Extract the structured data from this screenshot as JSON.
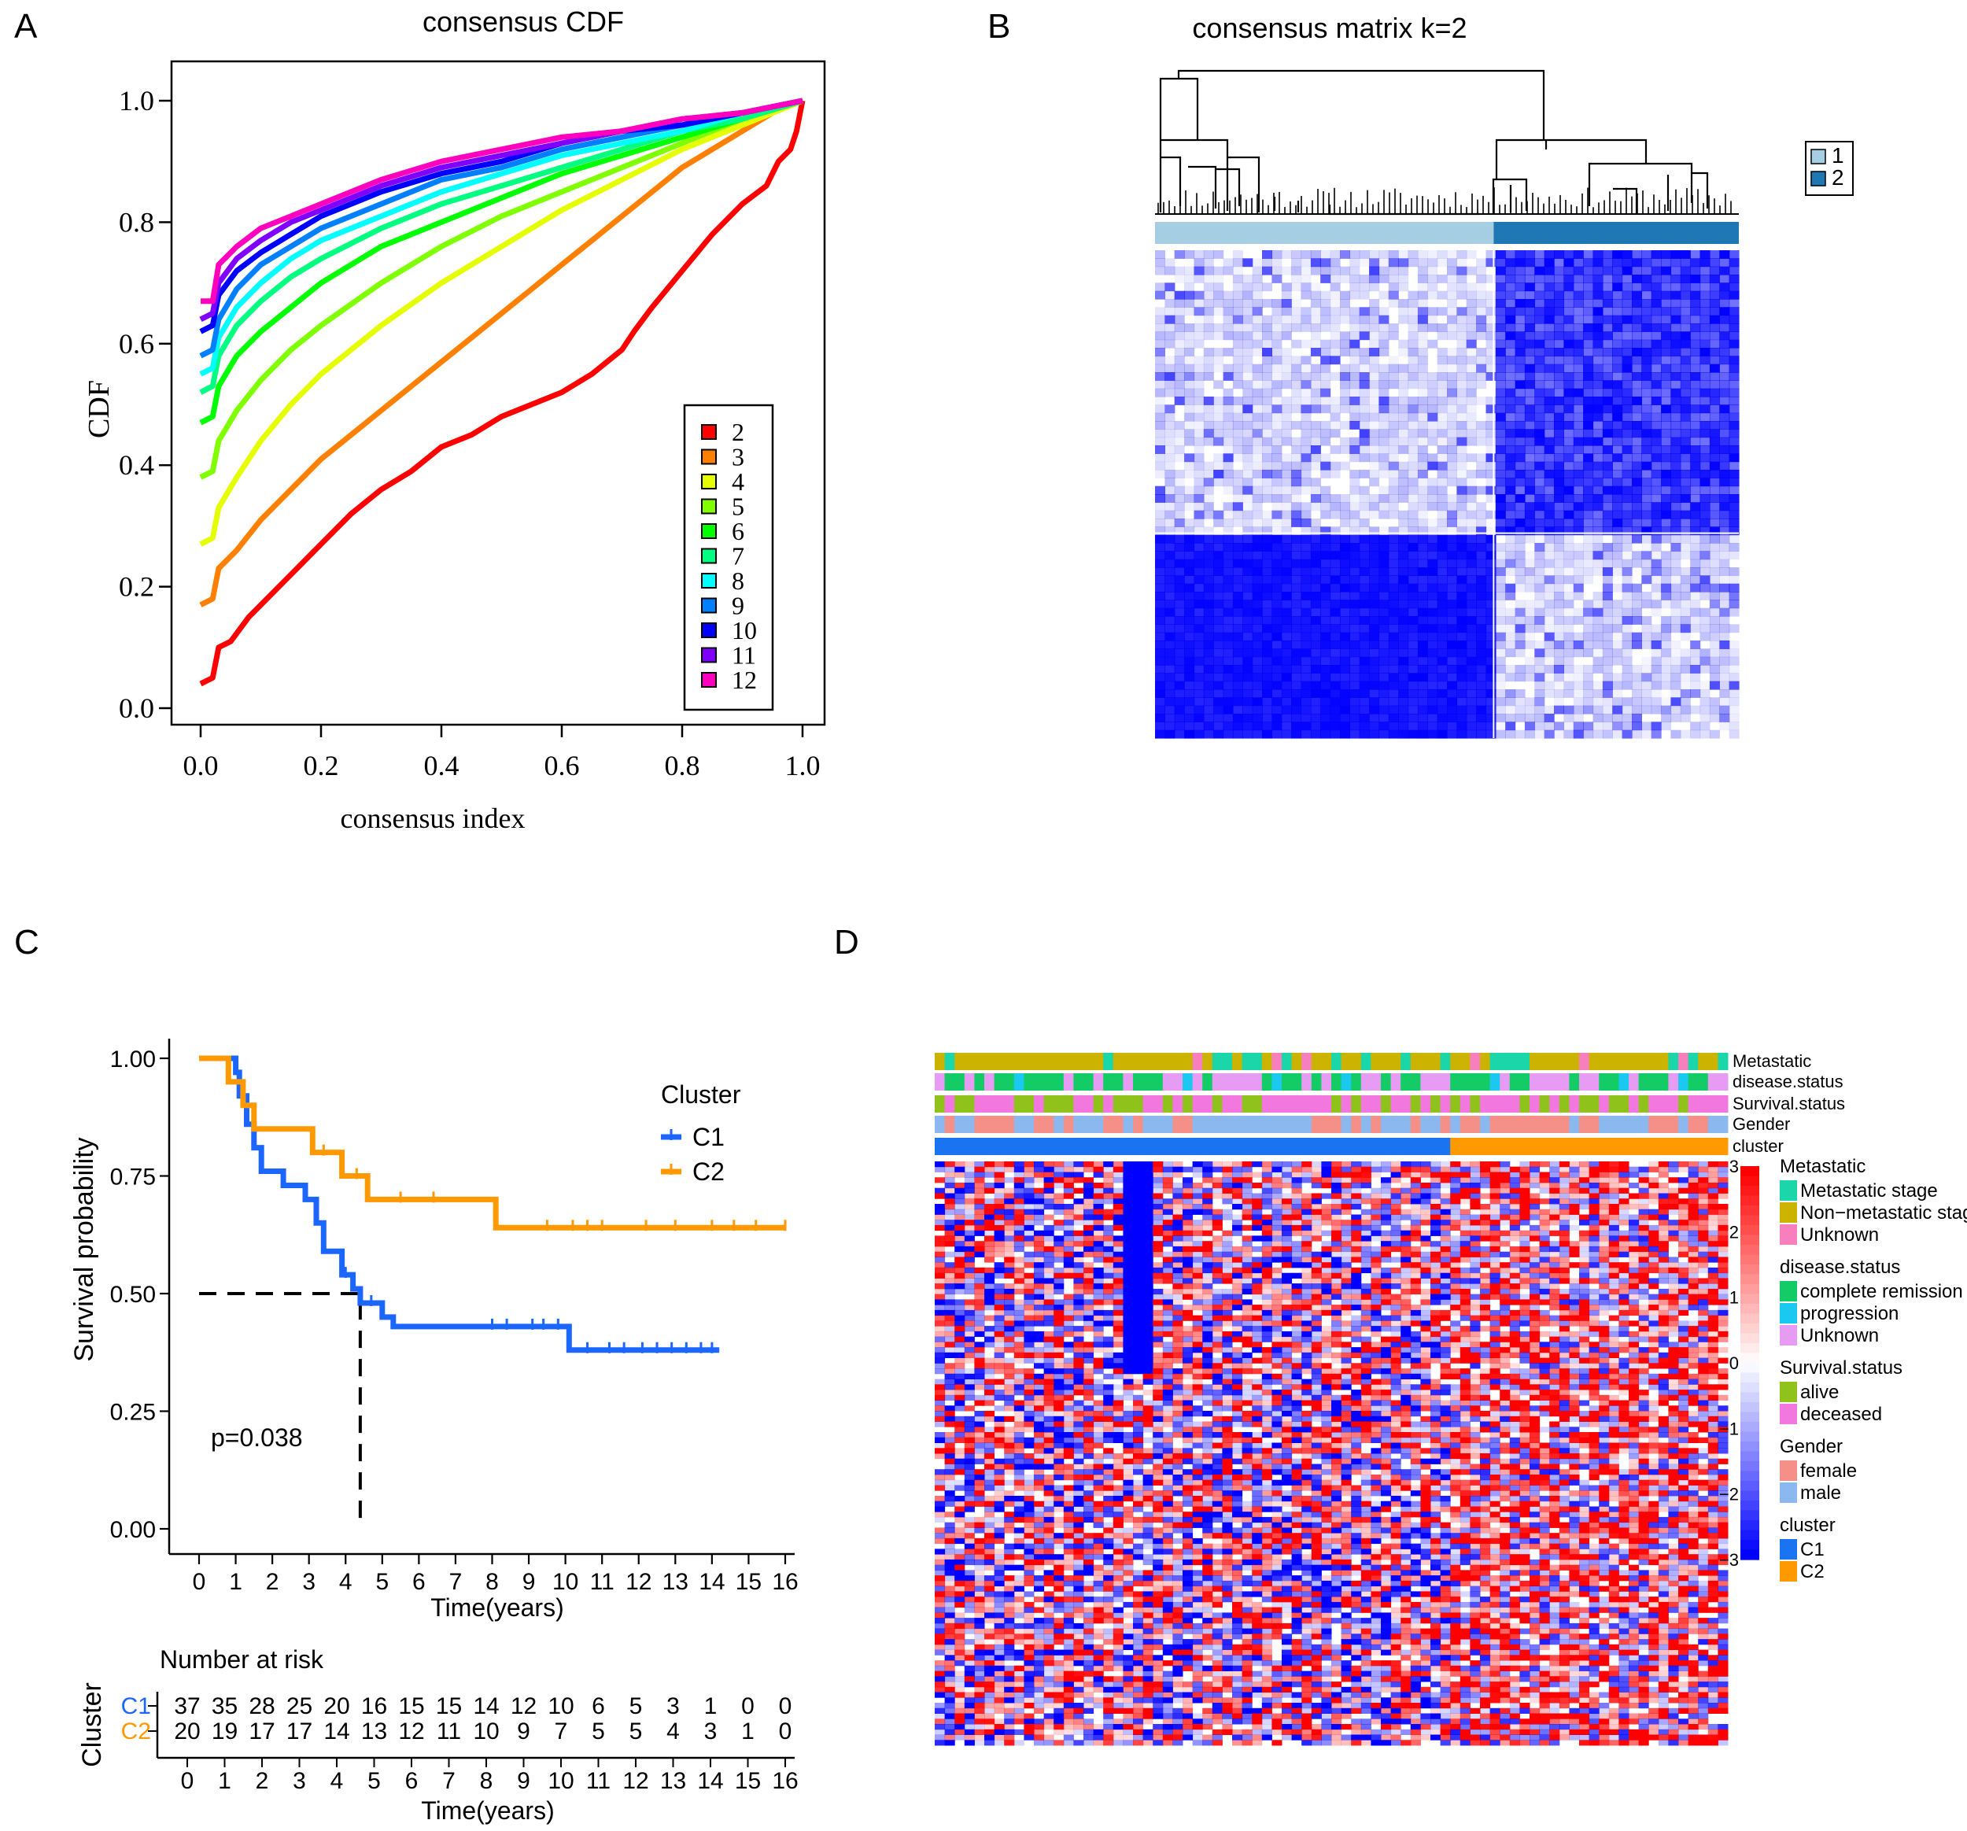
{
  "panel_labels": {
    "a": "A",
    "b": "B",
    "c": "C",
    "d": "D"
  },
  "chart_data": [
    {
      "id": "A",
      "type": "line",
      "title": "consensus CDF",
      "xlabel": "consensus index",
      "ylabel": "CDF",
      "xlim": [
        0,
        1
      ],
      "ylim": [
        0,
        1
      ],
      "xticks": [
        "0.0",
        "0.2",
        "0.4",
        "0.6",
        "0.8",
        "1.0"
      ],
      "yticks": [
        "0.0",
        "0.2",
        "0.4",
        "0.6",
        "0.8",
        "1.0"
      ],
      "legend_position": "bottom-right",
      "series": [
        {
          "name": "2",
          "color": "#ff0000",
          "x": [
            0,
            0.02,
            0.03,
            0.05,
            0.08,
            0.1,
            0.15,
            0.2,
            0.25,
            0.3,
            0.35,
            0.4,
            0.45,
            0.5,
            0.55,
            0.6,
            0.65,
            0.7,
            0.72,
            0.75,
            0.8,
            0.85,
            0.9,
            0.94,
            0.96,
            0.98,
            0.99,
            1.0
          ],
          "y": [
            0.04,
            0.05,
            0.1,
            0.11,
            0.15,
            0.17,
            0.22,
            0.27,
            0.32,
            0.36,
            0.39,
            0.43,
            0.45,
            0.48,
            0.5,
            0.52,
            0.55,
            0.59,
            0.62,
            0.66,
            0.72,
            0.78,
            0.83,
            0.86,
            0.9,
            0.92,
            0.95,
            1.0
          ]
        },
        {
          "name": "3",
          "color": "#ff8000",
          "x": [
            0,
            0.02,
            0.03,
            0.06,
            0.1,
            0.15,
            0.2,
            0.25,
            0.3,
            0.35,
            0.4,
            0.45,
            0.5,
            0.55,
            0.6,
            0.65,
            0.7,
            0.75,
            0.8,
            0.85,
            0.9,
            0.95,
            1.0
          ],
          "y": [
            0.17,
            0.18,
            0.23,
            0.26,
            0.31,
            0.36,
            0.41,
            0.45,
            0.49,
            0.53,
            0.57,
            0.61,
            0.65,
            0.69,
            0.73,
            0.77,
            0.81,
            0.85,
            0.89,
            0.92,
            0.95,
            0.98,
            1.0
          ]
        },
        {
          "name": "4",
          "color": "#e6ff00",
          "x": [
            0,
            0.02,
            0.03,
            0.06,
            0.1,
            0.15,
            0.2,
            0.3,
            0.4,
            0.5,
            0.6,
            0.7,
            0.8,
            0.9,
            1.0
          ],
          "y": [
            0.27,
            0.28,
            0.33,
            0.38,
            0.44,
            0.5,
            0.55,
            0.63,
            0.7,
            0.76,
            0.82,
            0.87,
            0.92,
            0.96,
            1.0
          ]
        },
        {
          "name": "5",
          "color": "#80ff00",
          "x": [
            0,
            0.02,
            0.03,
            0.06,
            0.1,
            0.15,
            0.2,
            0.3,
            0.4,
            0.5,
            0.6,
            0.7,
            0.8,
            0.9,
            1.0
          ],
          "y": [
            0.38,
            0.39,
            0.44,
            0.49,
            0.54,
            0.59,
            0.63,
            0.7,
            0.76,
            0.81,
            0.85,
            0.89,
            0.93,
            0.97,
            1.0
          ]
        },
        {
          "name": "6",
          "color": "#00ff00",
          "x": [
            0,
            0.02,
            0.03,
            0.06,
            0.1,
            0.15,
            0.2,
            0.3,
            0.4,
            0.5,
            0.6,
            0.7,
            0.8,
            0.9,
            1.0
          ],
          "y": [
            0.47,
            0.48,
            0.53,
            0.58,
            0.62,
            0.66,
            0.7,
            0.76,
            0.8,
            0.84,
            0.88,
            0.91,
            0.94,
            0.97,
            1.0
          ]
        },
        {
          "name": "7",
          "color": "#00ff80",
          "x": [
            0,
            0.02,
            0.03,
            0.06,
            0.1,
            0.15,
            0.2,
            0.3,
            0.4,
            0.5,
            0.6,
            0.7,
            0.8,
            0.9,
            1.0
          ],
          "y": [
            0.52,
            0.53,
            0.58,
            0.63,
            0.67,
            0.71,
            0.74,
            0.79,
            0.83,
            0.86,
            0.89,
            0.92,
            0.95,
            0.97,
            1.0
          ]
        },
        {
          "name": "8",
          "color": "#00ffff",
          "x": [
            0,
            0.02,
            0.03,
            0.06,
            0.1,
            0.15,
            0.2,
            0.3,
            0.4,
            0.5,
            0.6,
            0.7,
            0.8,
            0.9,
            1.0
          ],
          "y": [
            0.55,
            0.56,
            0.61,
            0.66,
            0.7,
            0.74,
            0.77,
            0.81,
            0.85,
            0.88,
            0.91,
            0.93,
            0.95,
            0.98,
            1.0
          ]
        },
        {
          "name": "9",
          "color": "#0080ff",
          "x": [
            0,
            0.02,
            0.03,
            0.06,
            0.1,
            0.15,
            0.2,
            0.3,
            0.4,
            0.5,
            0.6,
            0.7,
            0.8,
            0.9,
            1.0
          ],
          "y": [
            0.58,
            0.59,
            0.64,
            0.69,
            0.73,
            0.76,
            0.79,
            0.83,
            0.87,
            0.89,
            0.92,
            0.94,
            0.96,
            0.98,
            1.0
          ]
        },
        {
          "name": "10",
          "color": "#0000ff",
          "x": [
            0,
            0.02,
            0.03,
            0.06,
            0.1,
            0.15,
            0.2,
            0.3,
            0.4,
            0.5,
            0.6,
            0.7,
            0.8,
            0.9,
            1.0
          ],
          "y": [
            0.62,
            0.63,
            0.68,
            0.72,
            0.75,
            0.78,
            0.81,
            0.85,
            0.88,
            0.9,
            0.93,
            0.95,
            0.96,
            0.98,
            1.0
          ]
        },
        {
          "name": "11",
          "color": "#8000ff",
          "x": [
            0,
            0.02,
            0.03,
            0.06,
            0.1,
            0.15,
            0.2,
            0.3,
            0.4,
            0.5,
            0.6,
            0.7,
            0.8,
            0.9,
            1.0
          ],
          "y": [
            0.64,
            0.65,
            0.7,
            0.74,
            0.77,
            0.8,
            0.82,
            0.86,
            0.89,
            0.91,
            0.93,
            0.95,
            0.97,
            0.98,
            1.0
          ]
        },
        {
          "name": "12",
          "color": "#ff00bf",
          "x": [
            0,
            0.02,
            0.03,
            0.06,
            0.1,
            0.15,
            0.2,
            0.3,
            0.4,
            0.5,
            0.6,
            0.7,
            0.8,
            0.9,
            1.0
          ],
          "y": [
            0.67,
            0.67,
            0.73,
            0.76,
            0.79,
            0.81,
            0.83,
            0.87,
            0.9,
            0.92,
            0.94,
            0.95,
            0.97,
            0.98,
            1.0
          ]
        }
      ]
    },
    {
      "id": "B",
      "type": "heatmap",
      "title": "consensus matrix k=2",
      "legend_position": "top-right",
      "legend": [
        {
          "label": "1",
          "color": "#a6cee3"
        },
        {
          "label": "2",
          "color": "#1f78b4"
        }
      ],
      "cluster_fraction": [
        0.58,
        0.42
      ],
      "low_color": "#ffffff",
      "high_color": "#0000ff"
    },
    {
      "id": "C",
      "type": "line",
      "subtype": "kaplan-meier",
      "xlabel": "Time(years)",
      "ylabel": "Survival probability",
      "xlim": [
        0,
        16
      ],
      "ylim": [
        0,
        1
      ],
      "xticks": [
        "0",
        "1",
        "2",
        "3",
        "4",
        "5",
        "6",
        "7",
        "8",
        "9",
        "10",
        "11",
        "12",
        "13",
        "14",
        "15",
        "16"
      ],
      "yticks": [
        "0.00",
        "0.25",
        "0.50",
        "0.75",
        "1.00"
      ],
      "legend_title": "Cluster",
      "legend_position": "top-right",
      "pvalue": "p=0.038",
      "median_marker": {
        "x": 4.4,
        "y": 0.5
      },
      "series": [
        {
          "name": "C1",
          "color": "#1a66ff",
          "steps": [
            [
              0,
              1.0
            ],
            [
              1.0,
              0.97
            ],
            [
              1.1,
              0.92
            ],
            [
              1.3,
              0.86
            ],
            [
              1.5,
              0.81
            ],
            [
              1.7,
              0.76
            ],
            [
              2.3,
              0.73
            ],
            [
              2.9,
              0.7
            ],
            [
              3.2,
              0.65
            ],
            [
              3.4,
              0.59
            ],
            [
              3.9,
              0.54
            ],
            [
              4.2,
              0.51
            ],
            [
              4.4,
              0.48
            ],
            [
              5.0,
              0.45
            ],
            [
              5.3,
              0.43
            ],
            [
              10.1,
              0.38
            ],
            [
              14.2,
              0.38
            ]
          ],
          "censor": [
            4.0,
            4.7,
            8.0,
            8.4,
            9.1,
            9.4,
            9.8,
            10.6,
            11.2,
            11.6,
            12.1,
            12.5,
            12.9,
            13.3,
            13.7,
            14.0
          ]
        },
        {
          "name": "C2",
          "color": "#ff9900",
          "steps": [
            [
              0,
              1.0
            ],
            [
              0.8,
              0.95
            ],
            [
              1.2,
              0.9
            ],
            [
              1.5,
              0.85
            ],
            [
              3.1,
              0.8
            ],
            [
              3.9,
              0.75
            ],
            [
              4.6,
              0.7
            ],
            [
              8.1,
              0.64
            ],
            [
              16.0,
              0.64
            ]
          ],
          "censor": [
            3.4,
            4.3,
            5.5,
            6.4,
            9.5,
            10.2,
            10.6,
            11.0,
            12.2,
            13.0,
            14.0,
            14.6,
            15.2,
            16.0
          ]
        }
      ],
      "risk_table": {
        "title": "Number at risk",
        "ylabel": "Cluster",
        "xlabel": "Time(years)",
        "rows": [
          {
            "name": "C1",
            "color": "#1a66ff",
            "values": [
              "37",
              "35",
              "28",
              "25",
              "20",
              "16",
              "15",
              "15",
              "14",
              "12",
              "10",
              "6",
              "5",
              "3",
              "1",
              "0",
              "0"
            ]
          },
          {
            "name": "C2",
            "color": "#ff9900",
            "values": [
              "20",
              "19",
              "17",
              "17",
              "14",
              "13",
              "12",
              "11",
              "10",
              "9",
              "7",
              "5",
              "5",
              "4",
              "3",
              "1",
              "0"
            ]
          }
        ]
      }
    },
    {
      "id": "D",
      "type": "heatmap",
      "annotation_tracks": [
        "Metastatic",
        "disease.status",
        "Survival.status",
        "Gender",
        "cluster"
      ],
      "colorbar_ticks": [
        "3",
        "2",
        "1",
        "0",
        "−1",
        "−2",
        "−3"
      ],
      "colorbar_range": [
        -3,
        3
      ],
      "cluster_fraction": [
        0.65,
        0.35
      ],
      "legend_groups": [
        {
          "title": "Metastatic",
          "items": [
            {
              "label": "Metastatic stage",
              "color": "#1bd6a8"
            },
            {
              "label": "Non−metastatic stage",
              "color": "#ccb300"
            },
            {
              "label": "Unknown",
              "color": "#f77fbe"
            }
          ]
        },
        {
          "title": "disease.status",
          "items": [
            {
              "label": "complete remission",
              "color": "#14cc66"
            },
            {
              "label": "progression",
              "color": "#1ac8f0"
            },
            {
              "label": "Unknown",
              "color": "#e59cf2"
            }
          ]
        },
        {
          "title": "Survival.status",
          "items": [
            {
              "label": "alive",
              "color": "#8fc21a"
            },
            {
              "label": "deceased",
              "color": "#f278e0"
            }
          ]
        },
        {
          "title": "Gender",
          "items": [
            {
              "label": "female",
              "color": "#f59088"
            },
            {
              "label": "male",
              "color": "#8cb8f0"
            }
          ]
        },
        {
          "title": "cluster",
          "items": [
            {
              "label": "C1",
              "color": "#1a73f0"
            },
            {
              "label": "C2",
              "color": "#ff9900"
            }
          ]
        }
      ]
    }
  ]
}
